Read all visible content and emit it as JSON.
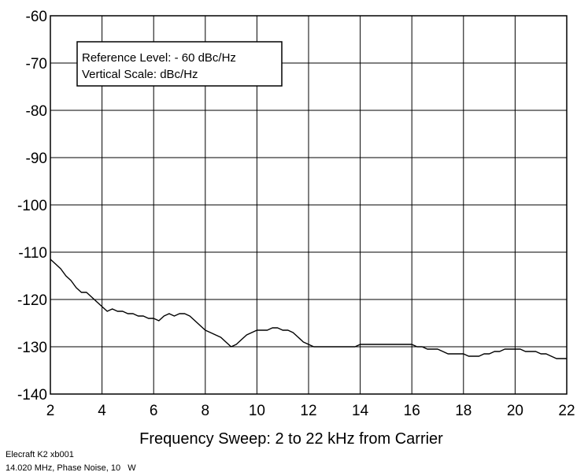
{
  "chart_data": {
    "type": "line",
    "xlabel": "Frequency Sweep: 2 to 22 kHz from Carrier",
    "ylabel": "",
    "xlim": [
      2,
      22
    ],
    "ylim": [
      -140,
      -60
    ],
    "x_ticks": [
      2,
      4,
      6,
      8,
      10,
      12,
      14,
      16,
      18,
      20,
      22
    ],
    "y_ticks": [
      -60,
      -70,
      -80,
      -90,
      -100,
      -110,
      -120,
      -130,
      -140
    ],
    "grid": true,
    "annotations": [
      "Reference Level: - 60 dBc/Hz",
      "Vertical Scale: dBc/Hz"
    ],
    "series": [
      {
        "color": "#000000",
        "x": [
          2.0,
          2.2,
          2.4,
          2.6,
          2.8,
          3.0,
          3.2,
          3.4,
          3.6,
          3.8,
          4.0,
          4.2,
          4.4,
          4.6,
          4.8,
          5.0,
          5.2,
          5.4,
          5.6,
          5.8,
          6.0,
          6.2,
          6.4,
          6.6,
          6.8,
          7.0,
          7.2,
          7.4,
          7.6,
          7.8,
          8.0,
          8.2,
          8.4,
          8.6,
          8.8,
          9.0,
          9.2,
          9.4,
          9.6,
          9.8,
          10.0,
          10.2,
          10.4,
          10.6,
          10.8,
          11.0,
          11.2,
          11.4,
          11.6,
          11.8,
          12.0,
          12.2,
          12.4,
          12.6,
          12.8,
          13.0,
          13.2,
          13.4,
          13.6,
          13.8,
          14.0,
          14.2,
          14.4,
          14.6,
          14.8,
          15.0,
          15.2,
          15.4,
          15.6,
          15.8,
          16.0,
          16.2,
          16.4,
          16.6,
          16.8,
          17.0,
          17.2,
          17.4,
          17.6,
          17.8,
          18.0,
          18.2,
          18.4,
          18.6,
          18.8,
          19.0,
          19.2,
          19.4,
          19.6,
          19.8,
          20.0,
          20.2,
          20.4,
          20.6,
          20.8,
          21.0,
          21.2,
          21.4,
          21.6,
          21.8,
          22.0
        ],
        "values": [
          -111.5,
          -112.5,
          -113.5,
          -115,
          -116,
          -117.5,
          -118.5,
          -118.5,
          -119.5,
          -120.5,
          -121.5,
          -122.5,
          -122,
          -122.5,
          -122.5,
          -123,
          -123,
          -123.5,
          -123.5,
          -124,
          -124,
          -124.5,
          -123.5,
          -123,
          -123.5,
          -123,
          -123,
          -123.5,
          -124.5,
          -125.5,
          -126.5,
          -127,
          -127.5,
          -128,
          -129,
          -130,
          -129.5,
          -128.5,
          -127.5,
          -127,
          -126.5,
          -126.5,
          -126.5,
          -126,
          -126,
          -126.5,
          -126.5,
          -127,
          -128,
          -129,
          -129.5,
          -130,
          -130,
          -130,
          -130,
          -130,
          -130,
          -130,
          -130,
          -130,
          -129.5,
          -129.5,
          -129.5,
          -129.5,
          -129.5,
          -129.5,
          -129.5,
          -129.5,
          -129.5,
          -129.5,
          -129.5,
          -130,
          -130,
          -130.5,
          -130.5,
          -130.5,
          -131,
          -131.5,
          -131.5,
          -131.5,
          -131.5,
          -132,
          -132,
          -132,
          -131.5,
          -131.5,
          -131,
          -131,
          -130.5,
          -130.5,
          -130.5,
          -130.5,
          -131,
          -131,
          -131,
          -131.5,
          -131.5,
          -132,
          -132.5,
          -132.5,
          -132.5
        ]
      }
    ]
  },
  "footer": {
    "line1": "Elecraft K2 xb001",
    "line2": "14.020 MHz, Phase Noise, 10   W"
  }
}
